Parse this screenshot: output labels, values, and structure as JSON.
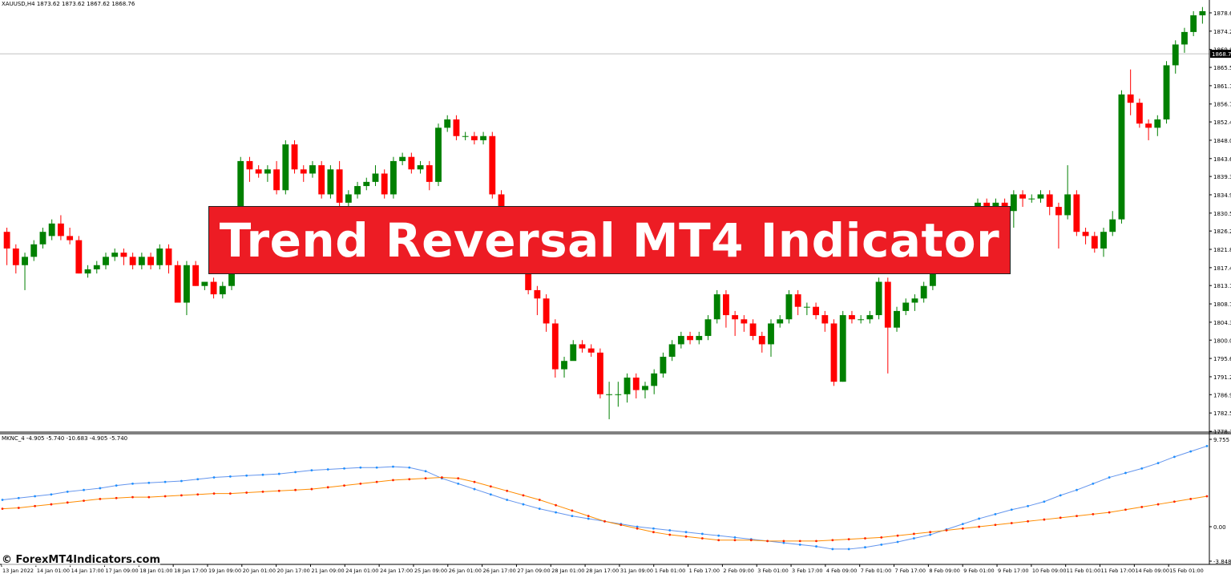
{
  "header": {
    "symbol_line": "XAUUSD,H4  1873.62 1873.62 1867.62 1868.76",
    "indicator_line": "MKNC_4 -4.905 -5.740 -10.683 -4.905 -5.740"
  },
  "banner": {
    "title": "Trend Reversal MT4 Indicator"
  },
  "watermark": "© ForexMT4Indicators.com",
  "colors": {
    "bull": "#008000",
    "bear": "#ff0000",
    "banner": "#ed1c24",
    "indicator_blue": "#6495ed",
    "indicator_orange": "#ff8c00",
    "indicator_red_dots": "#ff2200"
  },
  "price_axis": {
    "labels": [
      "1878.60",
      "1874.20",
      "1869.80",
      "1865.50",
      "1861.10",
      "1856.70",
      "1852.40",
      "1848.00",
      "1843.60",
      "1839.30",
      "1834.90",
      "1830.50",
      "1826.20",
      "1821.80",
      "1817.40",
      "1813.10",
      "1808.70",
      "1804.30",
      "1800.00",
      "1795.60",
      "1791.20",
      "1786.90",
      "1782.50",
      "1778.10"
    ],
    "current_price": "1868.76"
  },
  "indicator_axis": {
    "labels": [
      "9.755",
      "0.00",
      "-3.848"
    ]
  },
  "time_axis": {
    "labels": [
      "13 Jan 2022",
      "14 Jan 01:00",
      "14 Jan 17:00",
      "17 Jan 09:00",
      "18 Jan 01:00",
      "18 Jan 17:00",
      "19 Jan 09:00",
      "20 Jan 01:00",
      "20 Jan 17:00",
      "21 Jan 09:00",
      "24 Jan 01:00",
      "24 Jan 17:00",
      "25 Jan 09:00",
      "26 Jan 01:00",
      "26 Jan 17:00",
      "27 Jan 09:00",
      "28 Jan 01:00",
      "28 Jan 17:00",
      "31 Jan 09:00",
      "1 Feb 01:00",
      "1 Feb 17:00",
      "2 Feb 09:00",
      "3 Feb 01:00",
      "3 Feb 17:00",
      "4 Feb 09:00",
      "7 Feb 01:00",
      "7 Feb 17:00",
      "8 Feb 09:00",
      "9 Feb 01:00",
      "9 Feb 17:00",
      "10 Feb 09:00",
      "11 Feb 01:00",
      "11 Feb 17:00",
      "14 Feb 09:00",
      "15 Feb 01:00"
    ]
  },
  "chart_data": {
    "type": "candlestick",
    "symbol": "XAUUSD",
    "timeframe": "H4",
    "ylim": [
      1778.1,
      1878.6
    ],
    "candles": [
      [
        1826,
        1822,
        1827,
        1818
      ],
      [
        1822,
        1818,
        1823,
        1816
      ],
      [
        1818,
        1820,
        1821,
        1812
      ],
      [
        1820,
        1823,
        1824,
        1819
      ],
      [
        1823,
        1826,
        1827,
        1822
      ],
      [
        1825,
        1828,
        1829,
        1824
      ],
      [
        1828,
        1825,
        1830,
        1824
      ],
      [
        1825,
        1824,
        1827,
        1823
      ],
      [
        1824,
        1816,
        1825,
        1816
      ],
      [
        1816,
        1817,
        1818,
        1815
      ],
      [
        1817,
        1818,
        1819,
        1816
      ],
      [
        1818,
        1820,
        1821,
        1817
      ],
      [
        1820,
        1821,
        1822,
        1819
      ],
      [
        1821,
        1820,
        1822,
        1818
      ],
      [
        1820,
        1818,
        1821,
        1817
      ],
      [
        1818,
        1820,
        1821,
        1817
      ],
      [
        1820,
        1818,
        1821,
        1817
      ],
      [
        1818,
        1822,
        1823,
        1817
      ],
      [
        1822,
        1818,
        1823,
        1816
      ],
      [
        1818,
        1809,
        1819,
        1809
      ],
      [
        1809,
        1818,
        1819,
        1806
      ],
      [
        1818,
        1813,
        1819,
        1813
      ],
      [
        1813,
        1814,
        1814,
        1812
      ],
      [
        1814,
        1811,
        1815,
        1810
      ],
      [
        1811,
        1813,
        1814,
        1810
      ],
      [
        1813,
        1818,
        1819,
        1812
      ],
      [
        1818,
        1843,
        1844,
        1817
      ],
      [
        1843,
        1841,
        1844,
        1838
      ],
      [
        1841,
        1840,
        1842,
        1839
      ],
      [
        1840,
        1841,
        1842,
        1838
      ],
      [
        1841,
        1836,
        1843,
        1835
      ],
      [
        1836,
        1847,
        1848,
        1835
      ],
      [
        1847,
        1841,
        1848,
        1840
      ],
      [
        1841,
        1840,
        1842,
        1838
      ],
      [
        1840,
        1842,
        1843,
        1839
      ],
      [
        1842,
        1835,
        1843,
        1834
      ],
      [
        1835,
        1841,
        1842,
        1834
      ],
      [
        1841,
        1833,
        1843,
        1832
      ],
      [
        1833,
        1835,
        1836,
        1832
      ],
      [
        1835,
        1837,
        1838,
        1834
      ],
      [
        1837,
        1838,
        1839,
        1836
      ],
      [
        1838,
        1840,
        1842,
        1837
      ],
      [
        1840,
        1835,
        1841,
        1834
      ],
      [
        1835,
        1843,
        1844,
        1834
      ],
      [
        1843,
        1844,
        1845,
        1842
      ],
      [
        1844,
        1841,
        1845,
        1840
      ],
      [
        1841,
        1842,
        1843,
        1840
      ],
      [
        1842,
        1838,
        1843,
        1836
      ],
      [
        1838,
        1851,
        1852,
        1837
      ],
      [
        1851,
        1853,
        1854,
        1850
      ],
      [
        1853,
        1849,
        1854,
        1848
      ],
      [
        1849,
        1849,
        1850,
        1848
      ],
      [
        1849,
        1848,
        1850,
        1847
      ],
      [
        1848,
        1849,
        1850,
        1847
      ],
      [
        1849,
        1835,
        1850,
        1834
      ],
      [
        1835,
        1830,
        1836,
        1828
      ],
      [
        1830,
        1826,
        1831,
        1824
      ],
      [
        1826,
        1818,
        1827,
        1817
      ],
      [
        1818,
        1812,
        1819,
        1811
      ],
      [
        1812,
        1810,
        1813,
        1806
      ],
      [
        1810,
        1804,
        1811,
        1802
      ],
      [
        1804,
        1793,
        1805,
        1791
      ],
      [
        1793,
        1795,
        1796,
        1791
      ],
      [
        1795,
        1799,
        1800,
        1798
      ],
      [
        1799,
        1798,
        1800,
        1797
      ],
      [
        1798,
        1797,
        1799,
        1796
      ],
      [
        1797,
        1787,
        1798,
        1786
      ],
      [
        1787,
        1787,
        1790,
        1781
      ],
      [
        1787,
        1787,
        1790,
        1784
      ],
      [
        1787,
        1791,
        1792,
        1785
      ],
      [
        1791,
        1788,
        1792,
        1786
      ],
      [
        1788,
        1789,
        1790,
        1786
      ],
      [
        1789,
        1792,
        1793,
        1787
      ],
      [
        1792,
        1796,
        1797,
        1791
      ],
      [
        1796,
        1799,
        1800,
        1795
      ],
      [
        1799,
        1801,
        1802,
        1798
      ],
      [
        1801,
        1800,
        1802,
        1799
      ],
      [
        1800,
        1801,
        1802,
        1799
      ],
      [
        1801,
        1805,
        1806,
        1800
      ],
      [
        1805,
        1811,
        1812,
        1804
      ],
      [
        1811,
        1806,
        1812,
        1803
      ],
      [
        1806,
        1805,
        1807,
        1801
      ],
      [
        1805,
        1804,
        1806,
        1802
      ],
      [
        1804,
        1801,
        1805,
        1800
      ],
      [
        1801,
        1799,
        1802,
        1797
      ],
      [
        1799,
        1804,
        1805,
        1796
      ],
      [
        1804,
        1805,
        1806,
        1803
      ],
      [
        1805,
        1811,
        1812,
        1804
      ],
      [
        1811,
        1808,
        1812,
        1806
      ],
      [
        1808,
        1808,
        1809,
        1806
      ],
      [
        1808,
        1806,
        1809,
        1805
      ],
      [
        1806,
        1804,
        1807,
        1802
      ],
      [
        1804,
        1790,
        1805,
        1789
      ],
      [
        1790,
        1806,
        1807,
        1790
      ],
      [
        1806,
        1805,
        1807,
        1804
      ],
      [
        1805,
        1805,
        1806,
        1804
      ],
      [
        1805,
        1806,
        1807,
        1804
      ],
      [
        1806,
        1814,
        1815,
        1805
      ],
      [
        1814,
        1803,
        1815,
        1792
      ],
      [
        1803,
        1807,
        1808,
        1802
      ],
      [
        1807,
        1809,
        1810,
        1806
      ],
      [
        1809,
        1810,
        1811,
        1807
      ],
      [
        1810,
        1813,
        1814,
        1809
      ],
      [
        1813,
        1818,
        1819,
        1812
      ],
      [
        1818,
        1822,
        1823,
        1817
      ],
      [
        1822,
        1826,
        1827,
        1821
      ],
      [
        1826,
        1829,
        1830,
        1825
      ],
      [
        1829,
        1831,
        1832,
        1828
      ],
      [
        1831,
        1833,
        1834,
        1829
      ],
      [
        1833,
        1830,
        1834,
        1828
      ],
      [
        1830,
        1833,
        1834,
        1829
      ],
      [
        1833,
        1831,
        1834,
        1830
      ],
      [
        1831,
        1835,
        1836,
        1827
      ],
      [
        1835,
        1834,
        1836,
        1832
      ],
      [
        1834,
        1834,
        1835,
        1833
      ],
      [
        1834,
        1835,
        1836,
        1833
      ],
      [
        1835,
        1832,
        1836,
        1830
      ],
      [
        1832,
        1830,
        1833,
        1822
      ],
      [
        1830,
        1835,
        1842,
        1829
      ],
      [
        1835,
        1826,
        1836,
        1825
      ],
      [
        1826,
        1825,
        1827,
        1823
      ],
      [
        1825,
        1822,
        1826,
        1821
      ],
      [
        1822,
        1826,
        1827,
        1820
      ],
      [
        1826,
        1829,
        1831,
        1825
      ],
      [
        1829,
        1859,
        1860,
        1828
      ],
      [
        1859,
        1857,
        1865,
        1854
      ],
      [
        1857,
        1852,
        1858,
        1851
      ],
      [
        1852,
        1851,
        1853,
        1848
      ],
      [
        1851,
        1853,
        1854,
        1849
      ],
      [
        1853,
        1866,
        1867,
        1852
      ],
      [
        1866,
        1871,
        1872,
        1864
      ],
      [
        1871,
        1874,
        1875,
        1869
      ],
      [
        1874,
        1878,
        1879,
        1873
      ],
      [
        1878,
        1879,
        1880,
        1876
      ]
    ],
    "indicator": {
      "name": "MKNC_4",
      "series": [
        {
          "values": [
            3.0,
            3.2,
            3.4,
            3.6,
            3.9,
            4.1,
            4.3,
            4.6,
            4.8,
            4.9,
            5.0,
            5.1,
            5.3,
            5.5,
            5.6,
            5.7,
            5.8,
            5.9,
            6.1,
            6.3,
            6.4,
            6.5,
            6.6,
            6.6,
            6.7,
            6.6,
            6.2,
            5.4,
            4.8,
            4.2,
            3.6,
            3.0,
            2.5,
            2.0,
            1.6,
            1.2,
            0.9,
            0.6,
            0.3,
            0.0,
            -0.2,
            -0.4,
            -0.6,
            -0.8,
            -1.0,
            -1.2,
            -1.4,
            -1.6,
            -1.8,
            -2.0,
            -2.2,
            -2.5,
            -2.5,
            -2.3,
            -2.0,
            -1.7,
            -1.3,
            -0.9,
            -0.3,
            0.3,
            0.9,
            1.4,
            1.9,
            2.3,
            2.8,
            3.5,
            4.1,
            4.8,
            5.5,
            6.0,
            6.5,
            7.1,
            7.8,
            8.4,
            9.0
          ]
        },
        {
          "values": [
            2.0,
            2.1,
            2.3,
            2.5,
            2.7,
            2.9,
            3.1,
            3.2,
            3.3,
            3.3,
            3.4,
            3.5,
            3.6,
            3.7,
            3.7,
            3.8,
            3.9,
            4.0,
            4.1,
            4.2,
            4.4,
            4.6,
            4.8,
            5.0,
            5.2,
            5.3,
            5.4,
            5.5,
            5.4,
            5.0,
            4.5,
            4.0,
            3.5,
            3.0,
            2.4,
            1.8,
            1.2,
            0.6,
            0.2,
            -0.2,
            -0.6,
            -0.9,
            -1.1,
            -1.3,
            -1.5,
            -1.5,
            -1.5,
            -1.6,
            -1.6,
            -1.6,
            -1.6,
            -1.5,
            -1.4,
            -1.3,
            -1.2,
            -1.0,
            -0.8,
            -0.6,
            -0.4,
            -0.2,
            0.0,
            0.2,
            0.4,
            0.6,
            0.8,
            1.0,
            1.2,
            1.4,
            1.6,
            1.9,
            2.2,
            2.5,
            2.8,
            3.1,
            3.4
          ]
        }
      ]
    }
  }
}
